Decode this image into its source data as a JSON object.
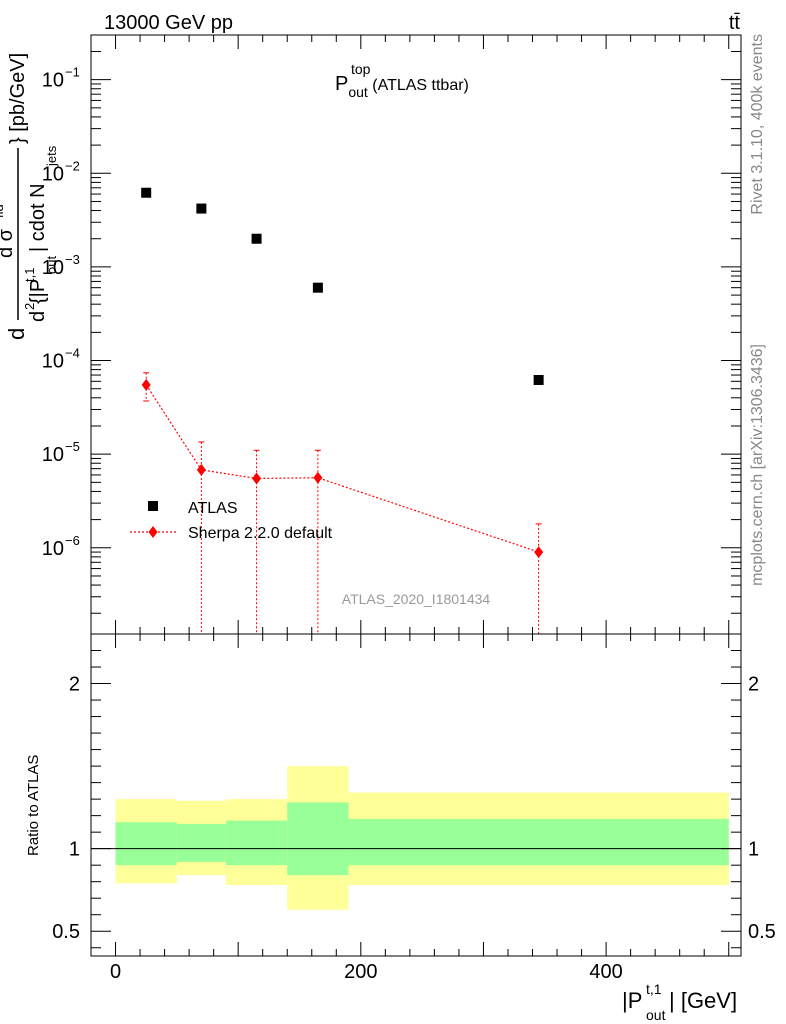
{
  "header": {
    "energy_label": "13000 GeV pp",
    "process_label": "tt̄"
  },
  "side_labels": {
    "rivet": "Rivet 3.1.10,  400k events",
    "mcplots": "mcplots.cern.ch [arXiv:1306.3436]"
  },
  "watermark": "ATLAS_2020_I1801434",
  "chart_data": [
    {
      "type": "scatter",
      "panel": "main",
      "title": {
        "main": "P",
        "sup": "top",
        "sub": "out",
        "suffix": " (ATLAS ttbar)"
      },
      "ylabel_text": "d²σ/d{|P_out^{t,1}| cdot N_jets} [pb/GeV]",
      "ylabel_parts": {
        "d_prefix": "d",
        "numerator": "d σ",
        "numerator_sup": "fid",
        "denominator_pre": "d",
        "denominator_sup": "2",
        "denominator_mid": " {|P",
        "denominator_p_sup": "t,1",
        "denominator_p_sub": "out",
        "denominator_post": "| cdot N",
        "denominator_n_sub": "jets",
        "unit": "} [pb/GeV]"
      },
      "yscale": "log",
      "xlim": [
        -20,
        510
      ],
      "ylim": [
        1.2e-07,
        0.3
      ],
      "yticks": [
        {
          "value": 1e-06,
          "mant": "10",
          "exp": "−6"
        },
        {
          "value": 1e-05,
          "mant": "10",
          "exp": "−5"
        },
        {
          "value": 0.0001,
          "mant": "10",
          "exp": "−4"
        },
        {
          "value": 0.001,
          "mant": "10",
          "exp": "−3"
        },
        {
          "value": 0.01,
          "mant": "10",
          "exp": "−2"
        },
        {
          "value": 0.1,
          "mant": "10",
          "exp": "−1"
        }
      ],
      "legend": {
        "placement": "lower-left",
        "entries": [
          "ATLAS",
          "Sherpa 2.2.0 default"
        ]
      },
      "series": [
        {
          "name": "ATLAS",
          "marker": "square",
          "color": "#000000",
          "x": [
            25,
            70,
            115,
            165,
            345
          ],
          "y": [
            0.0062,
            0.0042,
            0.002,
            0.0006,
            6.2e-05
          ]
        },
        {
          "name": "Sherpa 2.2.0 default",
          "marker": "diamond",
          "color": "#ff0000",
          "line": "dotted",
          "x": [
            25,
            70,
            115,
            165,
            345
          ],
          "y": [
            5.5e-05,
            6.8e-06,
            5.5e-06,
            5.6e-06,
            9e-07
          ],
          "y_low": [
            3.7e-05,
            1e-09,
            1e-09,
            1e-09,
            1e-09
          ],
          "y_high": [
            7.4e-05,
            1.35e-05,
            1.1e-05,
            1.1e-05,
            1.8e-06
          ]
        }
      ]
    },
    {
      "type": "area",
      "panel": "ratio",
      "ylabel": "Ratio to ATLAS",
      "xlabel_parts": {
        "pre": "|P",
        "sup": "t,1",
        "sub": "out",
        "post": "| [GeV]"
      },
      "xlim": [
        -20,
        510
      ],
      "ylim": [
        0.35,
        2.3
      ],
      "xticks": [
        {
          "value": 0,
          "label": "0"
        },
        {
          "value": 200,
          "label": "200"
        },
        {
          "value": 400,
          "label": "400"
        }
      ],
      "yticks": [
        {
          "value": 0.5,
          "label": "0.5"
        },
        {
          "value": 1,
          "label": "1"
        },
        {
          "value": 2,
          "label": "2"
        }
      ],
      "reference_line": 1.0,
      "bins": [
        {
          "x": [
            0,
            50
          ],
          "inner": [
            0.9,
            1.16
          ],
          "outer": [
            0.79,
            1.3
          ]
        },
        {
          "x": [
            50,
            90
          ],
          "inner": [
            0.92,
            1.15
          ],
          "outer": [
            0.84,
            1.29
          ]
        },
        {
          "x": [
            90,
            140
          ],
          "inner": [
            0.9,
            1.17
          ],
          "outer": [
            0.78,
            1.3
          ]
        },
        {
          "x": [
            140,
            190
          ],
          "inner": [
            0.84,
            1.28
          ],
          "outer": [
            0.63,
            1.5
          ]
        },
        {
          "x": [
            190,
            500
          ],
          "inner": [
            0.9,
            1.18
          ],
          "outer": [
            0.78,
            1.34
          ]
        }
      ],
      "colors": {
        "inner": "#99ff99",
        "outer": "#ffff99"
      }
    }
  ]
}
